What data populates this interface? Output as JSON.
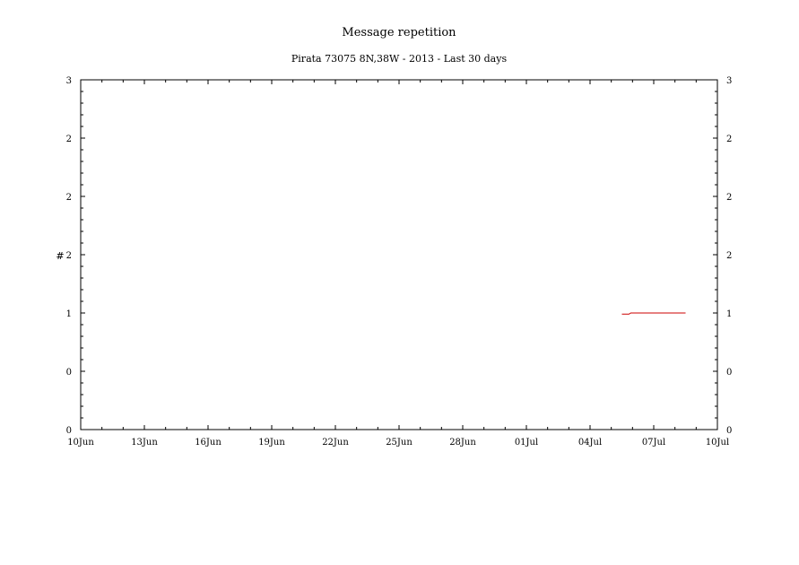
{
  "chart_data": {
    "type": "line",
    "title": "Message repetition",
    "subtitle": "Pirata 73075 8N,38W - 2013 - Last 30 days",
    "xlabel": "",
    "ylabel": "#",
    "x_range": [
      "2013-06-10",
      "2013-07-10"
    ],
    "y_range": [
      0,
      3
    ],
    "x_tick_labels": [
      "10Jun",
      "13Jun",
      "16Jun",
      "19Jun",
      "22Jun",
      "25Jun",
      "28Jun",
      "01Jul",
      "04Jul",
      "07Jul",
      "10Jul"
    ],
    "y_tick_labels_left": [
      "0",
      "0",
      "1",
      "2",
      "2",
      "2",
      "3"
    ],
    "y_tick_labels_right": [
      "0",
      "0",
      "1",
      "2",
      "2",
      "2",
      "3"
    ],
    "grid": false,
    "series": [
      {
        "color": "#cc0000",
        "points": [
          {
            "x": "2013-07-05T12:00",
            "y": 0.99
          },
          {
            "x": "2013-07-05T20:00",
            "y": 0.99
          },
          {
            "x": "2013-07-05T22:00",
            "y": 1.0
          },
          {
            "x": "2013-07-08T12:00",
            "y": 1.0
          }
        ]
      }
    ]
  }
}
